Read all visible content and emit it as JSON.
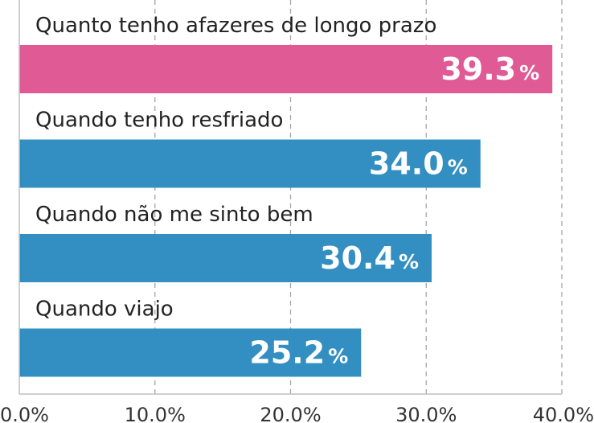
{
  "chart_data": {
    "type": "bar",
    "orientation": "horizontal",
    "categories": [
      "Quanto tenho afazeres de longo prazo",
      "Quando tenho resfriado",
      "Quando não me sinto bem",
      "Quando viajo"
    ],
    "values": [
      39.3,
      34.0,
      30.4,
      25.2
    ],
    "value_labels": [
      "39.3",
      "34.0",
      "30.4",
      "25.2"
    ],
    "value_unit": "%",
    "xlim": [
      0,
      40
    ],
    "x_ticks": [
      "0.0%",
      "10.0%",
      "20.0%",
      "30.0%",
      "40.0%"
    ],
    "grid": "vertical dashed",
    "colors": {
      "highlight": "#e05a96",
      "default": "#338fc2",
      "grid": "#a6a6a6",
      "axis": "#bfbfbf"
    },
    "highlight_index": 0
  }
}
